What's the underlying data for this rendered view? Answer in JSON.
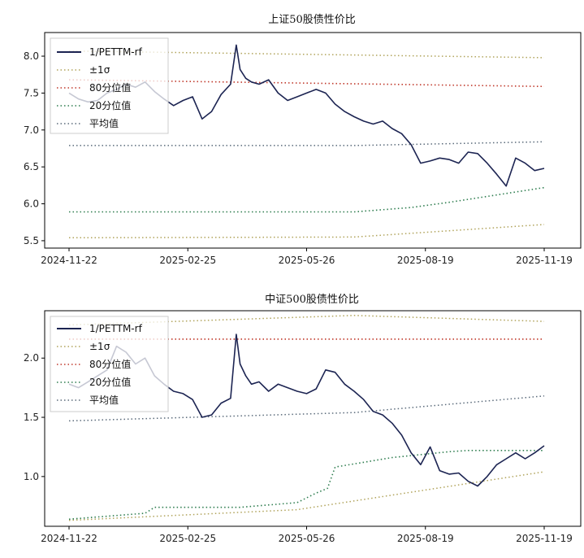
{
  "chart_data": [
    {
      "type": "line",
      "title": "上证50股债性价比",
      "xlabel": "",
      "ylabel": "",
      "x_ticks": [
        "2024-11-22",
        "2025-02-25",
        "2025-05-26",
        "2025-08-19",
        "2025-11-19"
      ],
      "x_range": [
        0,
        250
      ],
      "y_ticks": [
        5.5,
        6.0,
        6.5,
        7.0,
        7.5,
        8.0
      ],
      "ylim": [
        5.4,
        8.32
      ],
      "grid": false,
      "legend_position": "top-left",
      "legend": [
        "1/PETTM-rf",
        "±1σ",
        "80分位值",
        "20分位值",
        "平均值"
      ],
      "colors": {
        "main": "#1c2452",
        "sigma": "#b0a35a",
        "p80": "#c0392b",
        "p20": "#2e7d4f",
        "mean": "#5a6a7a"
      },
      "series": [
        {
          "name": "1/PETTM-rf",
          "x": [
            0,
            5,
            10,
            15,
            20,
            25,
            30,
            35,
            40,
            45,
            50,
            55,
            60,
            65,
            70,
            75,
            80,
            85,
            88,
            90,
            93,
            96,
            100,
            105,
            110,
            115,
            120,
            125,
            130,
            135,
            140,
            145,
            150,
            155,
            160,
            165,
            170,
            175,
            180,
            185,
            190,
            195,
            200,
            205,
            210,
            215,
            220,
            225,
            230,
            235,
            240,
            245,
            250
          ],
          "y": [
            7.5,
            7.42,
            7.38,
            7.4,
            7.5,
            7.55,
            7.62,
            7.58,
            7.65,
            7.52,
            7.42,
            7.33,
            7.4,
            7.45,
            7.15,
            7.25,
            7.48,
            7.62,
            8.15,
            7.82,
            7.7,
            7.65,
            7.62,
            7.68,
            7.5,
            7.4,
            7.45,
            7.5,
            7.55,
            7.5,
            7.35,
            7.25,
            7.18,
            7.12,
            7.08,
            7.12,
            7.02,
            6.95,
            6.8,
            6.55,
            6.58,
            6.62,
            6.6,
            6.55,
            6.7,
            6.68,
            6.55,
            6.4,
            6.24,
            6.62,
            6.55,
            6.45,
            6.48
          ]
        },
        {
          "name": "+1σ",
          "x": [
            0,
            250
          ],
          "y": [
            8.07,
            7.98
          ]
        },
        {
          "name": "-1σ",
          "x": [
            0,
            150,
            250
          ],
          "y": [
            5.54,
            5.55,
            5.72
          ]
        },
        {
          "name": "80分位值",
          "x": [
            0,
            250
          ],
          "y": [
            7.68,
            7.59
          ]
        },
        {
          "name": "20分位值",
          "x": [
            0,
            150,
            180,
            200,
            250
          ],
          "y": [
            5.89,
            5.89,
            5.95,
            6.02,
            6.22
          ]
        },
        {
          "name": "平均值",
          "x": [
            0,
            150,
            250
          ],
          "y": [
            6.79,
            6.79,
            6.84
          ]
        }
      ]
    },
    {
      "type": "line",
      "title": "中证500股债性价比",
      "xlabel": "",
      "ylabel": "",
      "x_ticks": [
        "2024-11-22",
        "2025-02-25",
        "2025-05-26",
        "2025-08-19",
        "2025-11-19"
      ],
      "x_range": [
        0,
        250
      ],
      "y_ticks": [
        1.0,
        1.5,
        2.0
      ],
      "ylim": [
        0.58,
        2.4
      ],
      "grid": false,
      "legend_position": "top-left",
      "legend": [
        "1/PETTM-rf",
        "±1σ",
        "80分位值",
        "20分位值",
        "平均值"
      ],
      "colors": {
        "main": "#1c2452",
        "sigma": "#b0a35a",
        "p80": "#c0392b",
        "p20": "#2e7d4f",
        "mean": "#5a6a7a"
      },
      "series": [
        {
          "name": "1/PETTM-rf",
          "x": [
            0,
            5,
            10,
            15,
            20,
            25,
            30,
            35,
            40,
            45,
            50,
            55,
            60,
            65,
            70,
            75,
            80,
            85,
            88,
            90,
            93,
            96,
            100,
            105,
            110,
            115,
            120,
            125,
            130,
            135,
            140,
            145,
            150,
            155,
            160,
            165,
            170,
            175,
            180,
            185,
            190,
            195,
            200,
            205,
            210,
            215,
            220,
            225,
            230,
            235,
            240,
            245,
            250
          ],
          "y": [
            1.78,
            1.75,
            1.8,
            1.85,
            1.9,
            2.1,
            2.05,
            1.95,
            2.0,
            1.85,
            1.78,
            1.72,
            1.7,
            1.65,
            1.5,
            1.52,
            1.62,
            1.66,
            2.2,
            1.95,
            1.85,
            1.78,
            1.8,
            1.72,
            1.78,
            1.75,
            1.72,
            1.7,
            1.74,
            1.9,
            1.88,
            1.78,
            1.72,
            1.65,
            1.55,
            1.52,
            1.45,
            1.35,
            1.2,
            1.1,
            1.25,
            1.05,
            1.02,
            1.03,
            0.96,
            0.92,
            1.0,
            1.1,
            1.15,
            1.2,
            1.15,
            1.2,
            1.26
          ]
        },
        {
          "name": "+1σ",
          "x": [
            0,
            150,
            250
          ],
          "y": [
            2.28,
            2.36,
            2.31
          ]
        },
        {
          "name": "-1σ",
          "x": [
            0,
            120,
            250
          ],
          "y": [
            0.63,
            0.72,
            1.04
          ]
        },
        {
          "name": "80分位值",
          "x": [
            0,
            250
          ],
          "y": [
            2.16,
            2.16
          ]
        },
        {
          "name": "20分位值",
          "x": [
            0,
            40,
            45,
            90,
            120,
            130,
            136,
            140,
            170,
            200,
            210,
            250
          ],
          "y": [
            0.64,
            0.69,
            0.74,
            0.74,
            0.78,
            0.86,
            0.9,
            1.08,
            1.16,
            1.21,
            1.22,
            1.22
          ]
        },
        {
          "name": "平均值",
          "x": [
            0,
            150,
            250
          ],
          "y": [
            1.47,
            1.54,
            1.68
          ]
        }
      ]
    }
  ]
}
